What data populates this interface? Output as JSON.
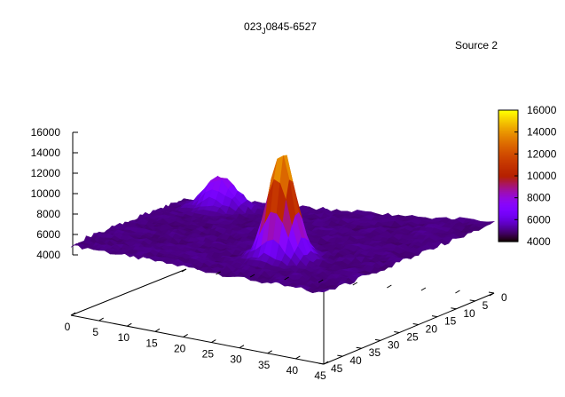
{
  "chart_data": {
    "type": "surface3d",
    "title": {
      "prefix": "023",
      "subscript": "J",
      "suffix": "0845-6527"
    },
    "annotation": "Source 2",
    "x_axis": {
      "range": [
        0,
        45
      ],
      "ticks": [
        0,
        5,
        10,
        15,
        20,
        25,
        30,
        35,
        40,
        45
      ]
    },
    "y_axis": {
      "range": [
        0,
        45
      ],
      "ticks": [
        0,
        5,
        10,
        15,
        20,
        25,
        30,
        35,
        40,
        45
      ]
    },
    "z_axis": {
      "range": [
        4000,
        16000
      ],
      "ticks": [
        4000,
        6000,
        8000,
        10000,
        12000,
        14000,
        16000
      ]
    },
    "colorbar": {
      "range": [
        4000,
        16000
      ],
      "ticks": [
        4000,
        6000,
        8000,
        10000,
        12000,
        14000,
        16000
      ],
      "palette": "black-purple-red-yellow"
    },
    "surface": {
      "baseline": 5000,
      "peaks": [
        {
          "x": 29.5,
          "y": 13.5,
          "height": 15600,
          "sigma": 2.0
        },
        {
          "x": 7.5,
          "y": 39.0,
          "height": 8200,
          "sigma": 2.2
        }
      ]
    },
    "grid": false,
    "legend": "none"
  }
}
